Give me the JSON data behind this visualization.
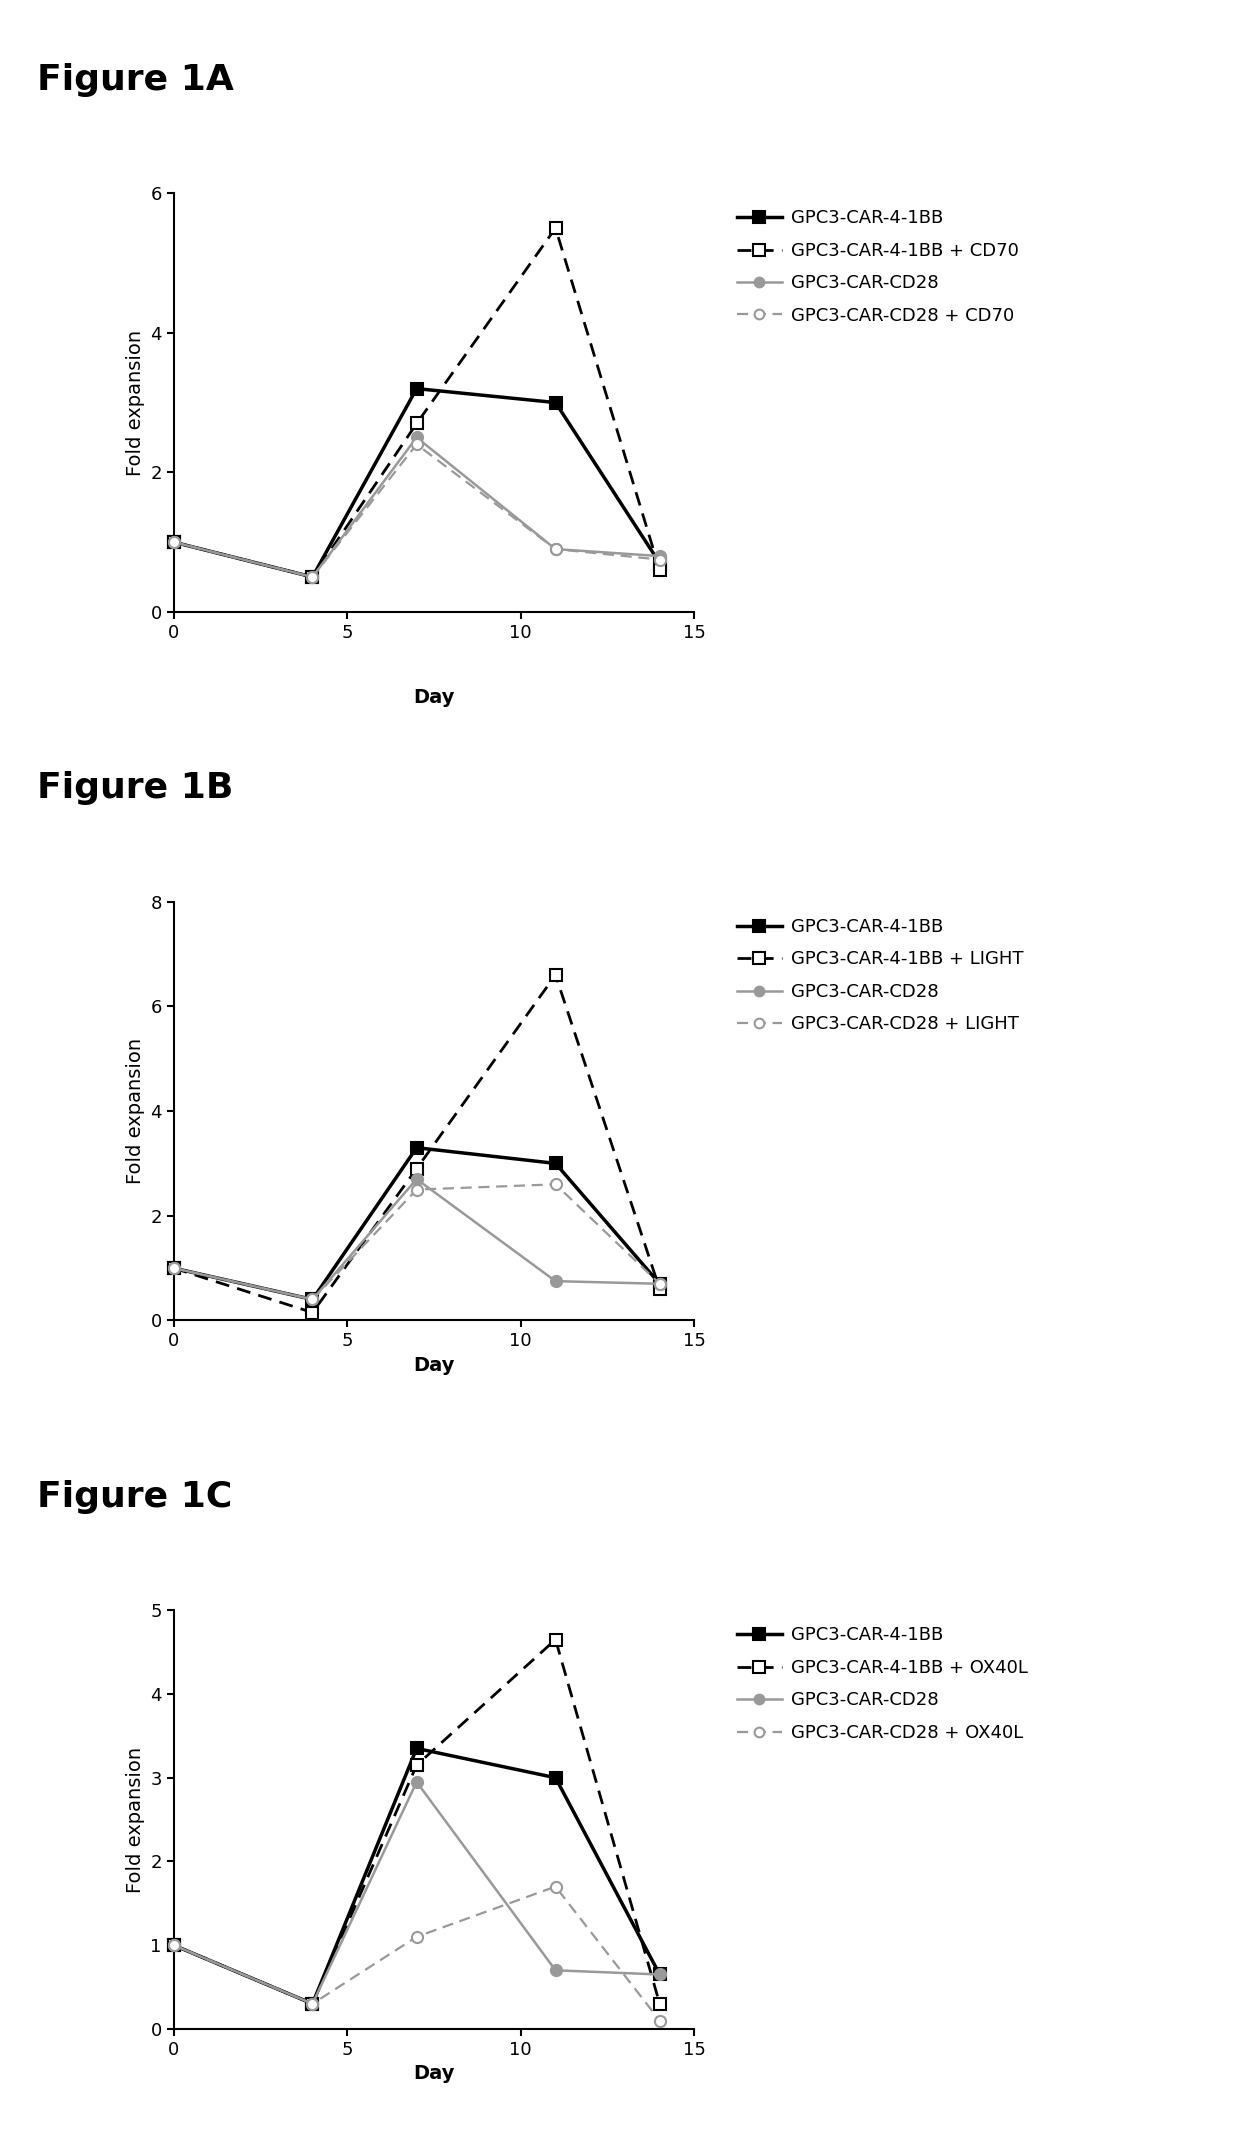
{
  "figures": [
    {
      "title": "Figure 1A",
      "ylabel": "Fold expansion",
      "xlabel": "",
      "ylim": [
        0,
        6
      ],
      "yticks": [
        0,
        2,
        4,
        6
      ],
      "xlim": [
        0,
        15
      ],
      "xticks": [
        0,
        5,
        10,
        15
      ],
      "series": [
        {
          "label": "GPC3-CAR-4-1BB",
          "x": [
            0,
            4,
            7,
            11,
            14
          ],
          "y": [
            1.0,
            0.5,
            3.2,
            3.0,
            0.7
          ],
          "color": "#000000",
          "linestyle": "-",
          "linewidth": 2.5,
          "marker": "s",
          "markersize": 9,
          "markerfacecolor": "#000000",
          "markeredgecolor": "#000000",
          "dashes": []
        },
        {
          "label": "GPC3-CAR-4-1BB + CD70",
          "x": [
            0,
            4,
            7,
            11,
            14
          ],
          "y": [
            1.0,
            0.5,
            2.7,
            5.5,
            0.6
          ],
          "color": "#000000",
          "linestyle": "--",
          "linewidth": 2.0,
          "marker": "s",
          "markersize": 9,
          "markerfacecolor": "#ffffff",
          "markeredgecolor": "#000000",
          "dashes": [
            5,
            3
          ]
        },
        {
          "label": "GPC3-CAR-CD28",
          "x": [
            0,
            4,
            7,
            11,
            14
          ],
          "y": [
            1.0,
            0.5,
            2.5,
            0.9,
            0.8
          ],
          "color": "#999999",
          "linestyle": "-",
          "linewidth": 1.8,
          "marker": "o",
          "markersize": 8,
          "markerfacecolor": "#999999",
          "markeredgecolor": "#999999",
          "dashes": []
        },
        {
          "label": "GPC3-CAR-CD28 + CD70",
          "x": [
            0,
            4,
            7,
            11,
            14
          ],
          "y": [
            1.0,
            0.5,
            2.4,
            0.9,
            0.75
          ],
          "color": "#999999",
          "linestyle": "--",
          "linewidth": 1.6,
          "marker": "o",
          "markersize": 8,
          "markerfacecolor": "#ffffff",
          "markeredgecolor": "#999999",
          "dashes": [
            5,
            3
          ]
        }
      ]
    },
    {
      "title": "Figure 1B",
      "ylabel": "Fold expansion",
      "xlabel": "Day",
      "ylim": [
        0,
        8
      ],
      "yticks": [
        0,
        2,
        4,
        6,
        8
      ],
      "xlim": [
        0,
        15
      ],
      "xticks": [
        0,
        5,
        10,
        15
      ],
      "series": [
        {
          "label": "GPC3-CAR-4-1BB",
          "x": [
            0,
            4,
            7,
            11,
            14
          ],
          "y": [
            1.0,
            0.4,
            3.3,
            3.0,
            0.7
          ],
          "color": "#000000",
          "linestyle": "-",
          "linewidth": 2.5,
          "marker": "s",
          "markersize": 9,
          "markerfacecolor": "#000000",
          "markeredgecolor": "#000000",
          "dashes": []
        },
        {
          "label": "GPC3-CAR-4-1BB + LIGHT",
          "x": [
            0,
            4,
            7,
            11,
            14
          ],
          "y": [
            1.0,
            0.15,
            2.9,
            6.6,
            0.6
          ],
          "color": "#000000",
          "linestyle": "--",
          "linewidth": 2.0,
          "marker": "s",
          "markersize": 9,
          "markerfacecolor": "#ffffff",
          "markeredgecolor": "#000000",
          "dashes": [
            5,
            3
          ]
        },
        {
          "label": "GPC3-CAR-CD28",
          "x": [
            0,
            4,
            7,
            11,
            14
          ],
          "y": [
            1.0,
            0.4,
            2.7,
            0.75,
            0.7
          ],
          "color": "#999999",
          "linestyle": "-",
          "linewidth": 1.8,
          "marker": "o",
          "markersize": 8,
          "markerfacecolor": "#999999",
          "markeredgecolor": "#999999",
          "dashes": []
        },
        {
          "label": "GPC3-CAR-CD28 + LIGHT",
          "x": [
            0,
            4,
            7,
            11,
            14
          ],
          "y": [
            1.0,
            0.4,
            2.5,
            2.6,
            0.7
          ],
          "color": "#999999",
          "linestyle": "--",
          "linewidth": 1.6,
          "marker": "o",
          "markersize": 8,
          "markerfacecolor": "#ffffff",
          "markeredgecolor": "#999999",
          "dashes": [
            5,
            3
          ]
        }
      ]
    },
    {
      "title": "Figure 1C",
      "ylabel": "Fold expansion",
      "xlabel": "Day",
      "ylim": [
        0,
        5
      ],
      "yticks": [
        0,
        1,
        2,
        3,
        4,
        5
      ],
      "xlim": [
        0,
        15
      ],
      "xticks": [
        0,
        5,
        10,
        15
      ],
      "series": [
        {
          "label": "GPC3-CAR-4-1BB",
          "x": [
            0,
            4,
            7,
            11,
            14
          ],
          "y": [
            1.0,
            0.3,
            3.35,
            3.0,
            0.65
          ],
          "color": "#000000",
          "linestyle": "-",
          "linewidth": 2.5,
          "marker": "s",
          "markersize": 9,
          "markerfacecolor": "#000000",
          "markeredgecolor": "#000000",
          "dashes": []
        },
        {
          "label": "GPC3-CAR-4-1BB + OX40L",
          "x": [
            0,
            4,
            7,
            11,
            14
          ],
          "y": [
            1.0,
            0.3,
            3.15,
            4.65,
            0.3
          ],
          "color": "#000000",
          "linestyle": "--",
          "linewidth": 2.0,
          "marker": "s",
          "markersize": 9,
          "markerfacecolor": "#ffffff",
          "markeredgecolor": "#000000",
          "dashes": [
            5,
            3
          ]
        },
        {
          "label": "GPC3-CAR-CD28",
          "x": [
            0,
            4,
            7,
            11,
            14
          ],
          "y": [
            1.0,
            0.3,
            2.95,
            0.7,
            0.65
          ],
          "color": "#999999",
          "linestyle": "-",
          "linewidth": 1.8,
          "marker": "o",
          "markersize": 8,
          "markerfacecolor": "#999999",
          "markeredgecolor": "#999999",
          "dashes": []
        },
        {
          "label": "GPC3-CAR-CD28 + OX40L",
          "x": [
            0,
            4,
            7,
            11,
            14
          ],
          "y": [
            1.0,
            0.3,
            1.1,
            1.7,
            0.1
          ],
          "color": "#999999",
          "linestyle": "--",
          "linewidth": 1.6,
          "marker": "o",
          "markersize": 8,
          "markerfacecolor": "#ffffff",
          "markeredgecolor": "#999999",
          "dashes": [
            5,
            3
          ]
        }
      ]
    }
  ],
  "figure_label_fontsize": 26,
  "axis_label_fontsize": 14,
  "tick_fontsize": 13,
  "legend_fontsize": 13,
  "background_color": "#ffffff",
  "day_label_between_fontsize": 14
}
